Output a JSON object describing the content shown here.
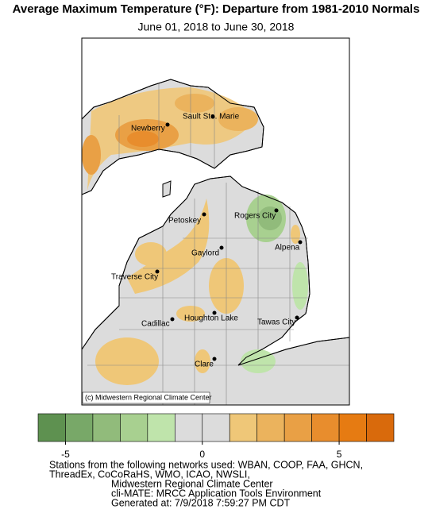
{
  "header": {
    "title": "Average Maximum Temperature (°F): Departure from 1981-2010 Normals",
    "subtitle": "June 01, 2018 to June 30, 2018"
  },
  "map": {
    "cities": [
      "Newberry",
      "Sault Ste. Marie",
      "Petoskey",
      "Rogers City",
      "Gaylord",
      "Alpena",
      "Traverse City",
      "Houghton Lake",
      "Cadillac",
      "Tawas City",
      "Clare"
    ],
    "credit": "(c) Midwestern Regional Climate Center"
  },
  "legend": {
    "colors": [
      "#5e9150",
      "#78a868",
      "#91bb7b",
      "#a8d090",
      "#bfe4ab",
      "#dcdcdc",
      "#dcdcdc",
      "#efc778",
      "#ebb35d",
      "#e9a045",
      "#e88d2d",
      "#e67b12",
      "#d96a0c"
    ],
    "xlim": [
      -6,
      7
    ],
    "xticks": [
      -5,
      0,
      5
    ]
  },
  "footer": {
    "lines": [
      "Stations from the following networks used: WBAN, COOP, FAA, GHCN,",
      "ThreadEx, CoCoRaHS, WMO, ICAO, NWSLI,",
      "Midwestern Regional Climate Center",
      "cli-MATE: MRCC Application Tools Environment",
      "Generated at: 7/9/2018 7:59:27 PM CDT"
    ]
  }
}
